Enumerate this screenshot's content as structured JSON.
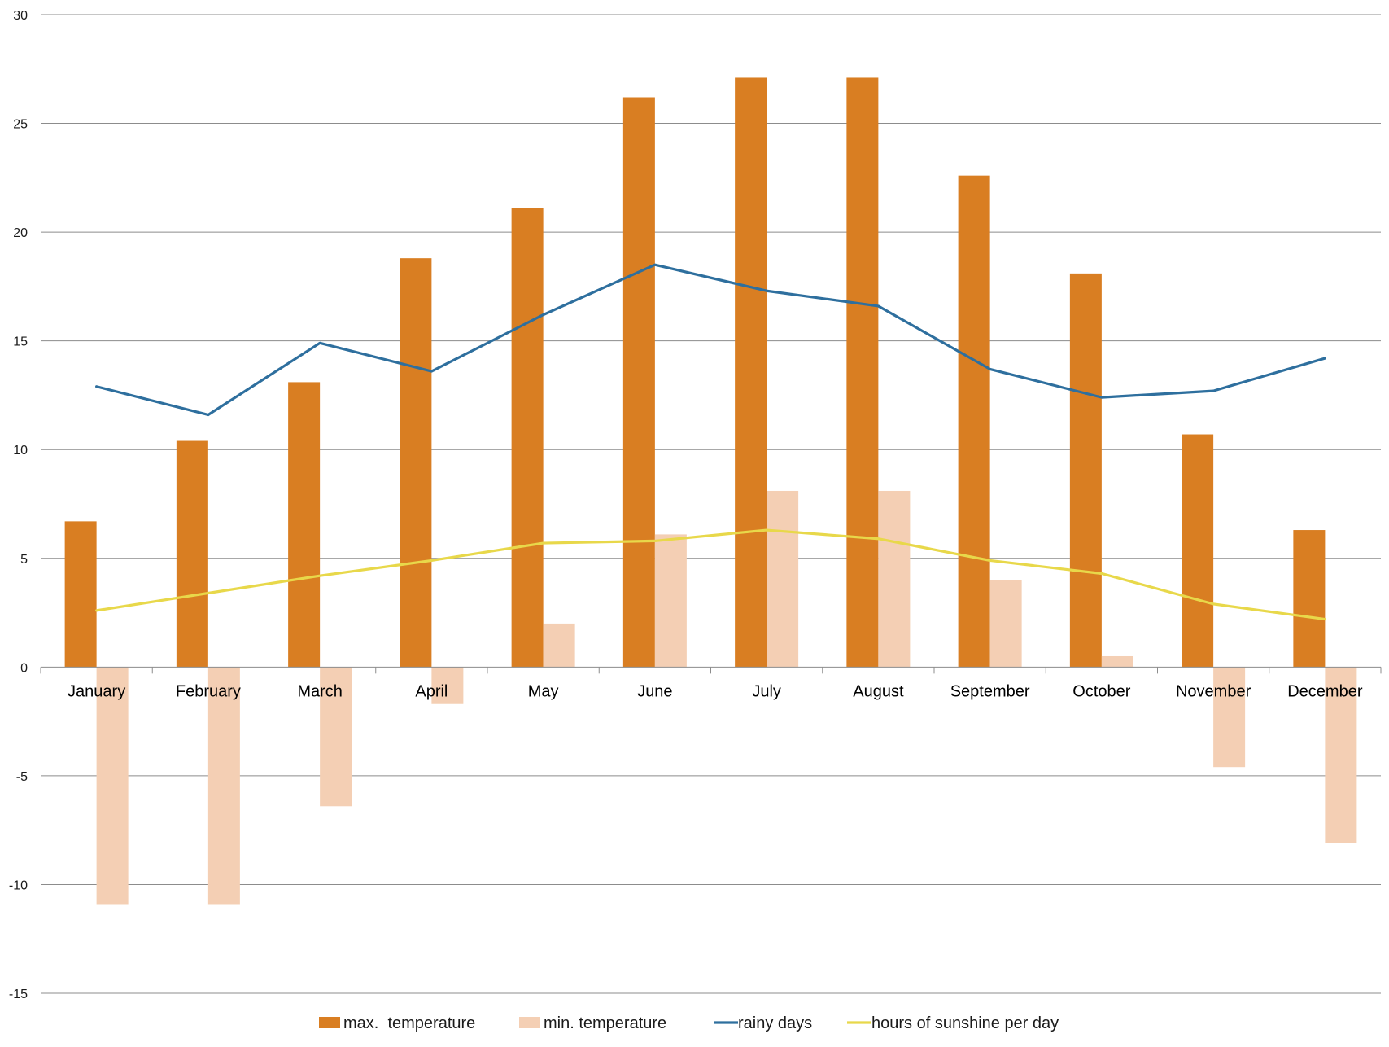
{
  "chart_data": {
    "type": "bar",
    "title": "",
    "xlabel": "",
    "ylabel": "",
    "ylim": [
      -15,
      30
    ],
    "yticks": [
      30,
      25,
      20,
      15,
      10,
      5,
      0,
      -5,
      -10,
      -15
    ],
    "grid": true,
    "legend_position": "bottom",
    "categories": [
      "January",
      "February",
      "March",
      "April",
      "May",
      "June",
      "July",
      "August",
      "September",
      "October",
      "November",
      "December"
    ],
    "series": [
      {
        "name": "max.  temperature",
        "kind": "bar",
        "color": "#d97e22",
        "values": [
          6.7,
          10.4,
          13.1,
          18.8,
          21.1,
          26.2,
          27.1,
          27.1,
          22.6,
          18.1,
          10.7,
          6.3
        ]
      },
      {
        "name": "min. temperature",
        "kind": "bar",
        "color": "#f4cfb4",
        "values": [
          -10.9,
          -10.9,
          -6.4,
          -1.7,
          2.0,
          6.1,
          8.1,
          8.1,
          4.0,
          0.5,
          -4.6,
          -8.1
        ]
      },
      {
        "name": "rainy days",
        "kind": "line",
        "color": "#2e6f9e",
        "values": [
          12.9,
          11.6,
          14.9,
          13.6,
          16.2,
          18.5,
          17.3,
          16.6,
          13.7,
          12.4,
          12.7,
          14.2
        ]
      },
      {
        "name": "hours of sunshine per day",
        "kind": "line",
        "color": "#e8d84a",
        "values": [
          2.6,
          3.4,
          4.2,
          4.9,
          5.7,
          5.8,
          6.3,
          5.9,
          4.9,
          4.3,
          2.9,
          2.2
        ]
      }
    ]
  }
}
